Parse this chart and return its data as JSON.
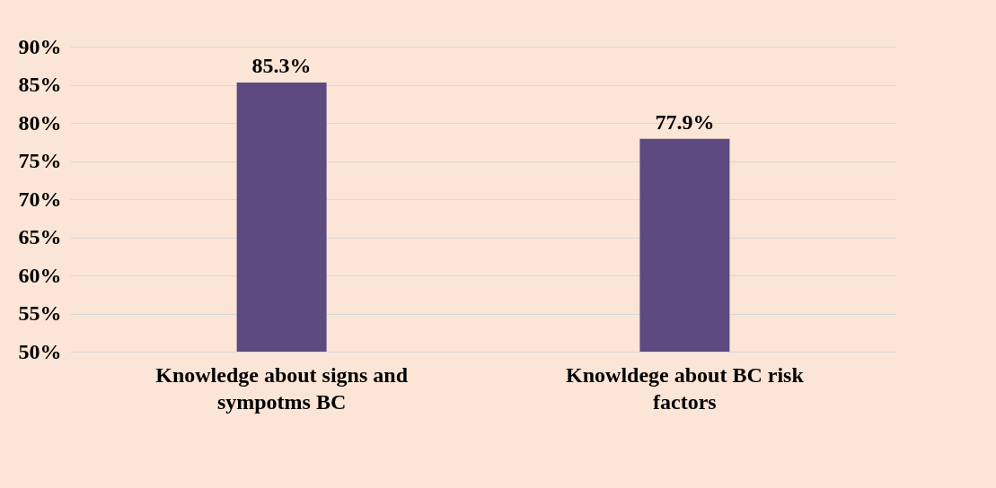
{
  "chart_data": {
    "type": "bar",
    "categories": [
      "Knowledge about signs and sympotms BC",
      "Knowldege about BC risk factors"
    ],
    "values": [
      85.3,
      77.9
    ],
    "value_labels": [
      "85.3%",
      "77.9%"
    ],
    "color": "#5c4a80",
    "ylim": [
      50,
      90
    ],
    "yticks": [
      {
        "value": 50,
        "label": "50%"
      },
      {
        "value": 55,
        "label": "55%"
      },
      {
        "value": 60,
        "label": "60%"
      },
      {
        "value": 65,
        "label": "65%"
      },
      {
        "value": 70,
        "label": "70%"
      },
      {
        "value": 75,
        "label": "75%"
      },
      {
        "value": 80,
        "label": "80%"
      },
      {
        "value": 85,
        "label": "85%"
      },
      {
        "value": 90,
        "label": "90%"
      }
    ],
    "grid": "y"
  }
}
